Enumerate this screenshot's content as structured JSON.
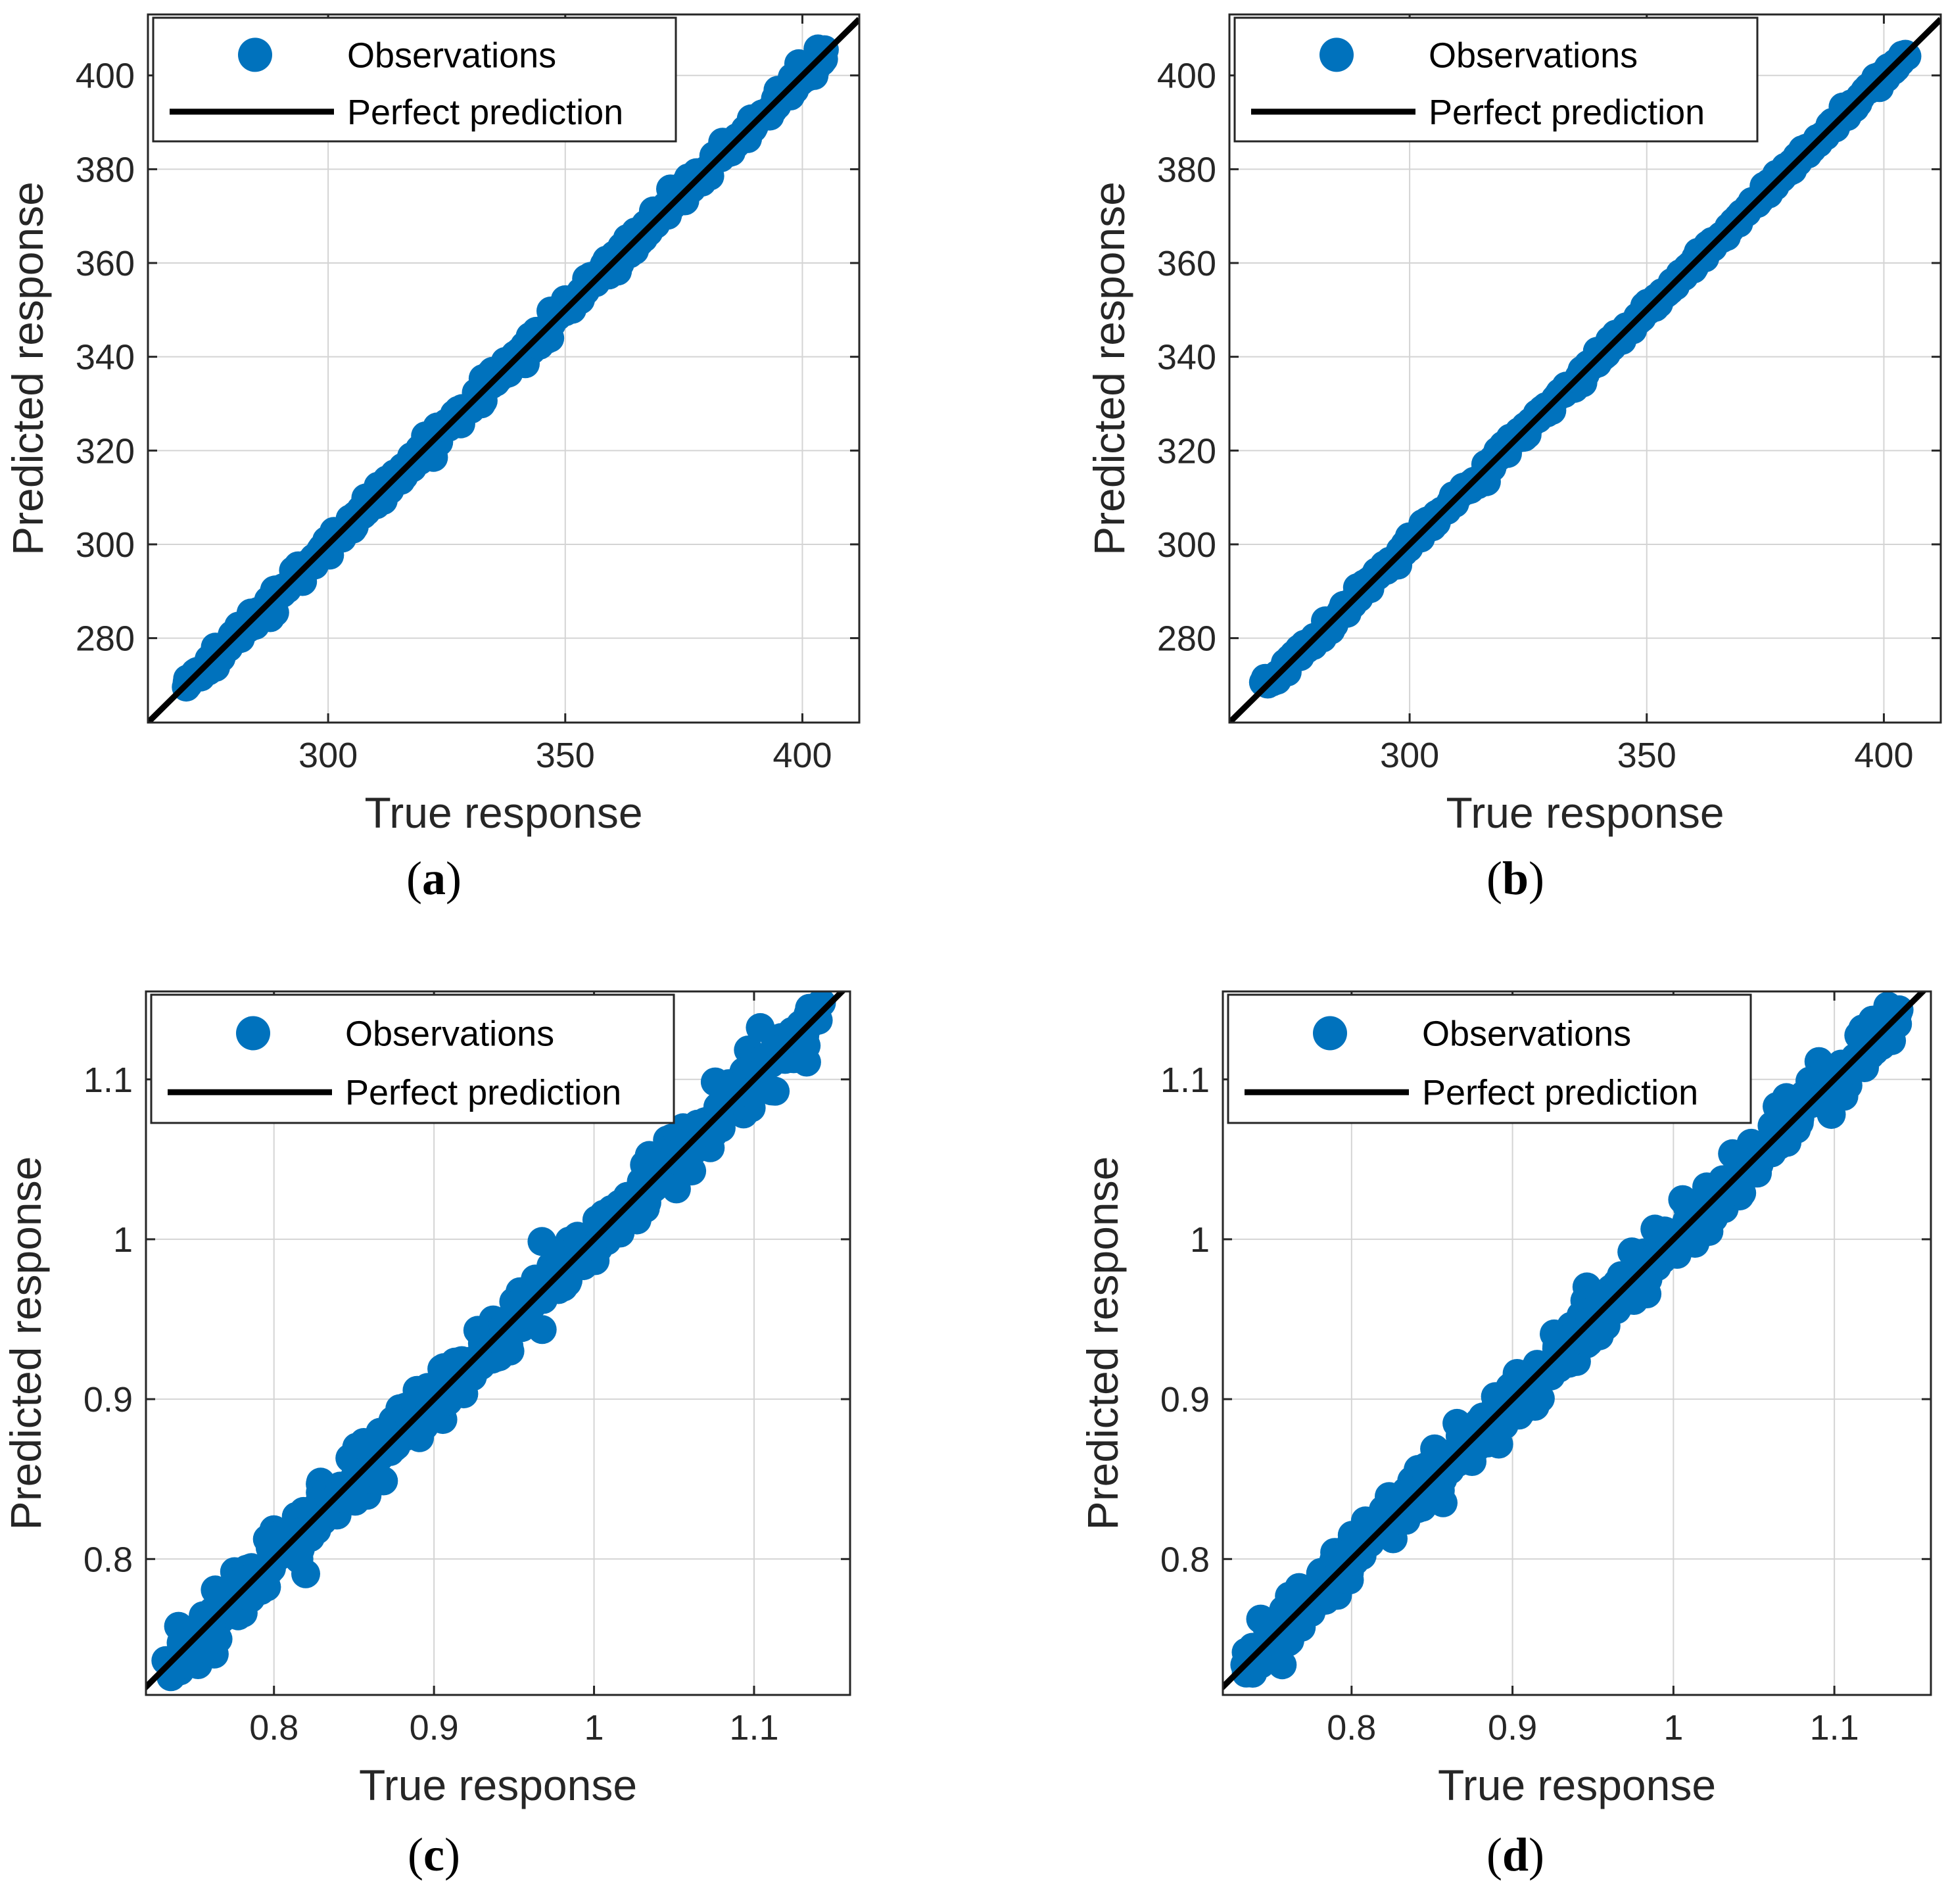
{
  "colors": {
    "observations": "#0072BD",
    "perfect_line": "#000000",
    "grid": "#d4d4d4",
    "axes": "#262626"
  },
  "chart_data": [
    {
      "id": "a",
      "type": "scatter",
      "panel_label": "a",
      "xlabel": "True response",
      "ylabel": "Predicted response",
      "xlim": [
        262,
        412
      ],
      "ylim": [
        262,
        413
      ],
      "xticks": [
        300,
        350,
        400
      ],
      "yticks": [
        280,
        300,
        320,
        340,
        360,
        380,
        400
      ],
      "xtick_labels": [
        "300",
        "350",
        "400"
      ],
      "ytick_labels": [
        "280",
        "300",
        "320",
        "340",
        "360",
        "380",
        "400"
      ],
      "grid": true,
      "legend": {
        "placement": "top-left",
        "entries": [
          "Observations",
          "Perfect prediction"
        ]
      },
      "series": [
        {
          "name": "Observations",
          "kind": "points",
          "x_range": [
            270,
            405
          ],
          "y_range": [
            270,
            405
          ],
          "spread": 1.2,
          "count": 320
        },
        {
          "name": "Perfect prediction",
          "kind": "line",
          "x": [
            262,
            412
          ],
          "y": [
            262,
            412
          ]
        }
      ]
    },
    {
      "id": "b",
      "type": "scatter",
      "panel_label": "b",
      "xlabel": "True response",
      "ylabel": "Predicted response",
      "xlim": [
        262,
        412
      ],
      "ylim": [
        262,
        413
      ],
      "xticks": [
        300,
        350,
        400
      ],
      "yticks": [
        280,
        300,
        320,
        340,
        360,
        380,
        400
      ],
      "xtick_labels": [
        "300",
        "350",
        "400"
      ],
      "ytick_labels": [
        "280",
        "300",
        "320",
        "340",
        "360",
        "380",
        "400"
      ],
      "grid": true,
      "legend": {
        "placement": "top-left",
        "entries": [
          "Observations",
          "Perfect prediction"
        ]
      },
      "series": [
        {
          "name": "Observations",
          "kind": "points",
          "x_range": [
            269,
            405
          ],
          "y_range": [
            269,
            405
          ],
          "spread": 0.8,
          "count": 320
        },
        {
          "name": "Perfect prediction",
          "kind": "line",
          "x": [
            262,
            412
          ],
          "y": [
            262,
            412
          ]
        }
      ]
    },
    {
      "id": "c",
      "type": "scatter",
      "panel_label": "c",
      "xlabel": "True response",
      "ylabel": "Predicted response",
      "xlim": [
        0.72,
        1.16
      ],
      "ylim": [
        0.715,
        1.155
      ],
      "xticks": [
        0.8,
        0.9,
        1.0,
        1.1
      ],
      "yticks": [
        0.8,
        0.9,
        1.0,
        1.1
      ],
      "xtick_labels": [
        "0.8",
        "0.9",
        "1",
        "1.1"
      ],
      "ytick_labels": [
        "0.8",
        "0.9",
        "1",
        "1.1"
      ],
      "grid": true,
      "legend": {
        "placement": "top-left",
        "entries": [
          "Observations",
          "Perfect prediction"
        ]
      },
      "series": [
        {
          "name": "Observations",
          "kind": "points",
          "x_range": [
            0.735,
            1.14
          ],
          "y_range": [
            0.735,
            1.14
          ],
          "spread": 0.009,
          "count": 420
        },
        {
          "name": "Perfect prediction",
          "kind": "line",
          "x": [
            0.715,
            1.16
          ],
          "y": [
            0.715,
            1.16
          ]
        }
      ]
    },
    {
      "id": "d",
      "type": "scatter",
      "panel_label": "d",
      "xlabel": "True response",
      "ylabel": "Predicted response",
      "xlim": [
        0.72,
        1.16
      ],
      "ylim": [
        0.715,
        1.155
      ],
      "xticks": [
        0.8,
        0.9,
        1.0,
        1.1
      ],
      "yticks": [
        0.8,
        0.9,
        1.0,
        1.1
      ],
      "xtick_labels": [
        "0.8",
        "0.9",
        "1",
        "1.1"
      ],
      "ytick_labels": [
        "0.8",
        "0.9",
        "1",
        "1.1"
      ],
      "grid": true,
      "legend": {
        "placement": "top-left",
        "entries": [
          "Observations",
          "Perfect prediction"
        ]
      },
      "series": [
        {
          "name": "Observations",
          "kind": "points",
          "x_range": [
            0.735,
            1.14
          ],
          "y_range": [
            0.735,
            1.14
          ],
          "spread": 0.009,
          "count": 420
        },
        {
          "name": "Perfect prediction",
          "kind": "line",
          "x": [
            0.715,
            1.16
          ],
          "y": [
            0.715,
            1.16
          ]
        }
      ]
    }
  ]
}
